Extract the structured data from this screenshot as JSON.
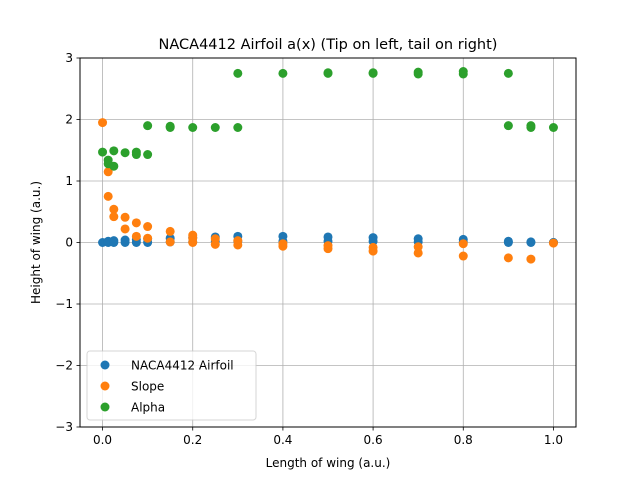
{
  "chart_data": {
    "type": "scatter",
    "title": "NACA4412 Airfoil a(x) (Tip on left, tail on right)",
    "xlabel": "Length of wing (a.u.)",
    "ylabel": "Height of wing (a.u.)",
    "xlim": [
      -0.05,
      1.05
    ],
    "ylim": [
      -3,
      3
    ],
    "x_ticks": [
      0.0,
      0.2,
      0.4,
      0.6,
      0.8,
      1.0
    ],
    "x_tick_labels": [
      "0.0",
      "0.2",
      "0.4",
      "0.6",
      "0.8",
      "1.0"
    ],
    "y_ticks": [
      -3,
      -2,
      -1,
      0,
      1,
      2,
      3
    ],
    "y_tick_labels": [
      "−3",
      "−2",
      "−1",
      "0",
      "1",
      "2",
      "3"
    ],
    "grid": true,
    "legend_position": "lower-left",
    "series": [
      {
        "name": "NACA4412 Airfoil",
        "color": "#1f77b4",
        "points": [
          [
            0.0,
            0.0
          ],
          [
            0.0125,
            0.02
          ],
          [
            0.025,
            0.03
          ],
          [
            0.05,
            0.04
          ],
          [
            0.075,
            0.05
          ],
          [
            0.1,
            0.06
          ],
          [
            0.15,
            0.07
          ],
          [
            0.2,
            0.08
          ],
          [
            0.25,
            0.09
          ],
          [
            0.3,
            0.1
          ],
          [
            0.4,
            0.1
          ],
          [
            0.5,
            0.09
          ],
          [
            0.6,
            0.08
          ],
          [
            0.7,
            0.06
          ],
          [
            0.8,
            0.05
          ],
          [
            0.9,
            0.02
          ],
          [
            0.95,
            0.01
          ],
          [
            1.0,
            0.0
          ],
          [
            0.0125,
            0.0
          ],
          [
            0.025,
            0.0
          ],
          [
            0.05,
            0.0
          ],
          [
            0.075,
            0.0
          ],
          [
            0.1,
            0.0
          ],
          [
            0.15,
            0.01
          ],
          [
            0.2,
            0.01
          ],
          [
            0.25,
            0.02
          ],
          [
            0.3,
            0.02
          ],
          [
            0.4,
            0.02
          ],
          [
            0.5,
            0.02
          ],
          [
            0.6,
            0.02
          ],
          [
            0.7,
            0.01
          ],
          [
            0.8,
            0.01
          ],
          [
            0.9,
            0.0
          ],
          [
            0.95,
            0.0
          ],
          [
            1.0,
            0.0
          ]
        ]
      },
      {
        "name": "Slope",
        "color": "#ff7f0e",
        "points": [
          [
            0.0,
            1.95
          ],
          [
            0.0125,
            1.15
          ],
          [
            0.0125,
            0.75
          ],
          [
            0.025,
            0.54
          ],
          [
            0.025,
            0.42
          ],
          [
            0.05,
            0.41
          ],
          [
            0.05,
            0.22
          ],
          [
            0.075,
            0.32
          ],
          [
            0.075,
            0.1
          ],
          [
            0.1,
            0.26
          ],
          [
            0.1,
            0.07
          ],
          [
            0.15,
            0.18
          ],
          [
            0.15,
            0.01
          ],
          [
            0.2,
            0.12
          ],
          [
            0.2,
            0.07
          ],
          [
            0.2,
            0.0
          ],
          [
            0.25,
            0.06
          ],
          [
            0.25,
            -0.03
          ],
          [
            0.3,
            0.03
          ],
          [
            0.3,
            -0.04
          ],
          [
            0.4,
            -0.02
          ],
          [
            0.4,
            -0.06
          ],
          [
            0.5,
            -0.05
          ],
          [
            0.5,
            -0.1
          ],
          [
            0.6,
            -0.08
          ],
          [
            0.6,
            -0.14
          ],
          [
            0.7,
            -0.07
          ],
          [
            0.7,
            -0.17
          ],
          [
            0.8,
            -0.02
          ],
          [
            0.8,
            -0.22
          ],
          [
            0.9,
            -0.25
          ],
          [
            0.95,
            -0.27
          ],
          [
            1.0,
            -0.01
          ]
        ]
      },
      {
        "name": "Alpha",
        "color": "#2ca02c",
        "points": [
          [
            0.0,
            1.47
          ],
          [
            0.0125,
            1.34
          ],
          [
            0.0125,
            1.28
          ],
          [
            0.025,
            1.49
          ],
          [
            0.025,
            1.24
          ],
          [
            0.05,
            1.46
          ],
          [
            0.075,
            1.47
          ],
          [
            0.075,
            1.43
          ],
          [
            0.1,
            1.9
          ],
          [
            0.1,
            1.43
          ],
          [
            0.15,
            1.89
          ],
          [
            0.15,
            1.87
          ],
          [
            0.2,
            1.87
          ],
          [
            0.25,
            1.87
          ],
          [
            0.3,
            1.87
          ],
          [
            0.3,
            2.75
          ],
          [
            0.4,
            2.75
          ],
          [
            0.5,
            2.76
          ],
          [
            0.5,
            2.75
          ],
          [
            0.6,
            2.76
          ],
          [
            0.6,
            2.75
          ],
          [
            0.7,
            2.77
          ],
          [
            0.7,
            2.74
          ],
          [
            0.8,
            2.78
          ],
          [
            0.8,
            2.74
          ],
          [
            0.9,
            2.75
          ],
          [
            0.9,
            1.9
          ],
          [
            0.95,
            1.9
          ],
          [
            0.95,
            1.87
          ],
          [
            1.0,
            1.87
          ]
        ]
      }
    ]
  }
}
